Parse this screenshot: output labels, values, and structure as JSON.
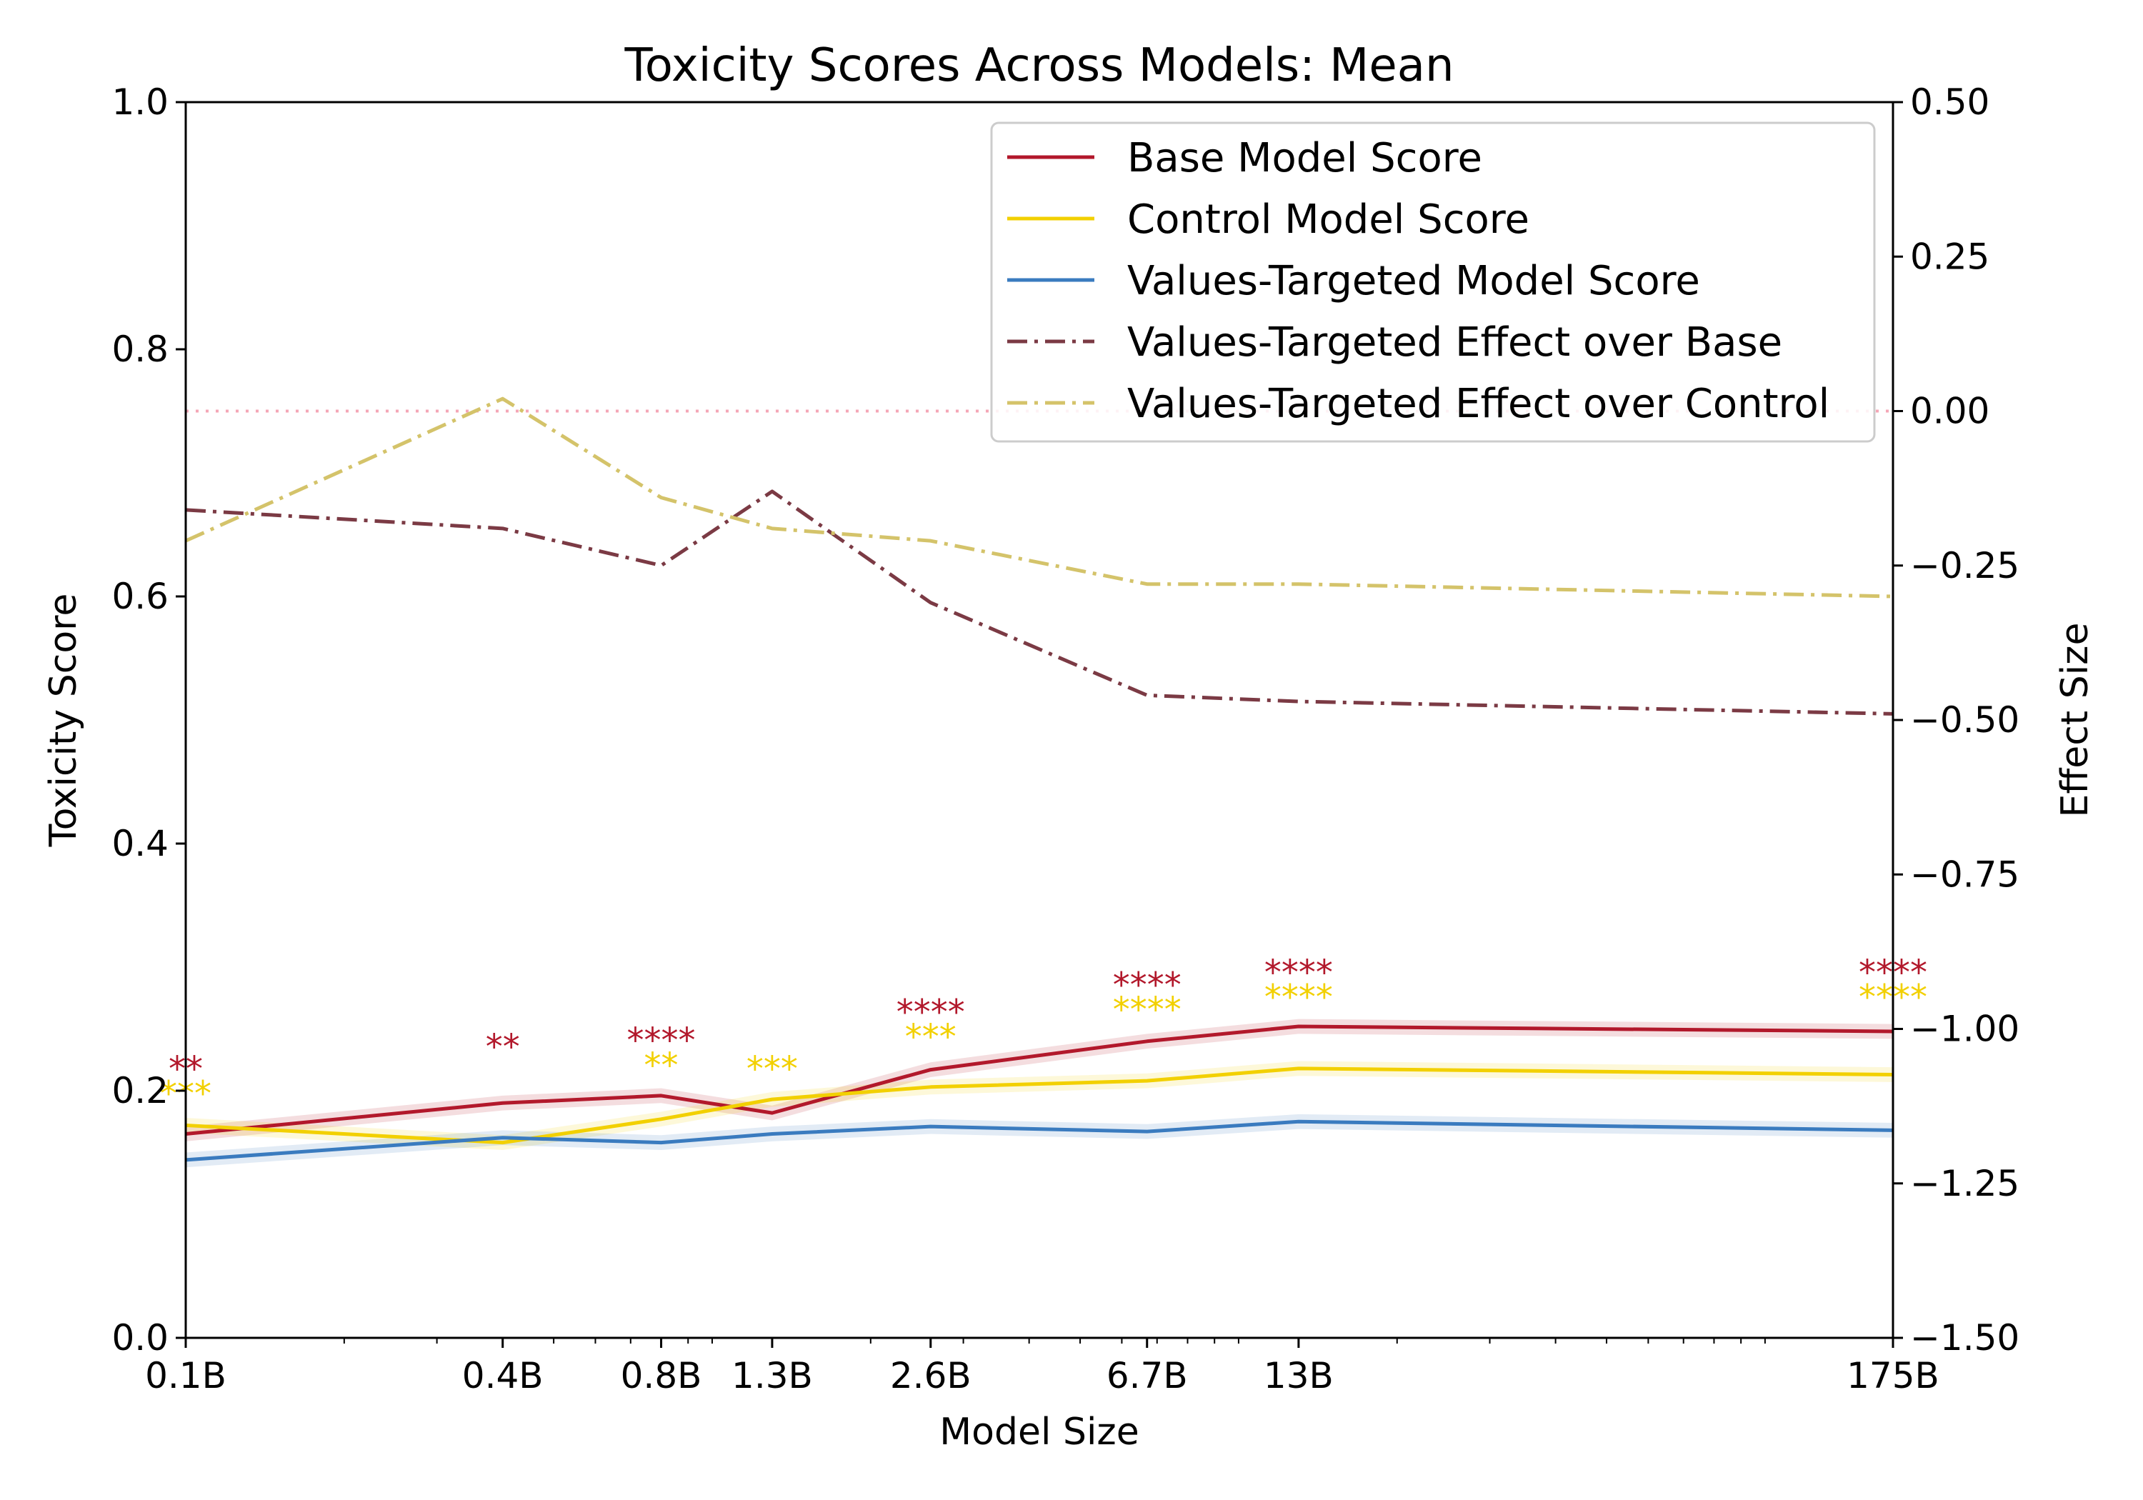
{
  "chart_data": {
    "type": "line",
    "title": "Toxicity Scores Across Models: Mean",
    "xlabel": "Model Size",
    "ylabel": "Toxicity Score",
    "ylabel_right": "Effect Size",
    "x_scale": "log",
    "x": [
      0.1,
      0.4,
      0.8,
      1.3,
      2.6,
      6.7,
      13,
      175
    ],
    "x_tick_labels": [
      "0.1B",
      "0.4B",
      "0.8B",
      "1.3B",
      "2.6B",
      "6.7B",
      "13B",
      "175B"
    ],
    "ylim": [
      0.0,
      1.0
    ],
    "y_ticks": [
      "0.0",
      "0.2",
      "0.4",
      "0.6",
      "0.8",
      "1.0"
    ],
    "ylim_right": [
      -1.5,
      0.5
    ],
    "y_ticks_right": [
      "−1.50",
      "−1.25",
      "−1.00",
      "−0.75",
      "−0.50",
      "−0.25",
      "0.00",
      "0.25",
      "0.50"
    ],
    "zero_line": 0.0,
    "legend_position": "upper-right",
    "series": [
      {
        "name": "Base Model Score",
        "axis": "left",
        "style": "solid",
        "color": "#b2182b",
        "values": [
          0.165,
          0.19,
          0.196,
          0.182,
          0.217,
          0.24,
          0.252,
          0.248
        ]
      },
      {
        "name": "Control Model Score",
        "axis": "left",
        "style": "solid",
        "color": "#f2d000",
        "values": [
          0.172,
          0.158,
          0.177,
          0.193,
          0.203,
          0.208,
          0.218,
          0.213
        ]
      },
      {
        "name": "Values-Targeted Model Score",
        "axis": "left",
        "style": "solid",
        "color": "#3a7bbf",
        "values": [
          0.144,
          0.162,
          0.158,
          0.165,
          0.171,
          0.167,
          0.175,
          0.168
        ]
      },
      {
        "name": "Values-Targeted Effect over Base",
        "axis": "right",
        "style": "dashdot",
        "color": "#7b3a44",
        "values": [
          -0.16,
          -0.19,
          -0.25,
          -0.13,
          -0.31,
          -0.46,
          -0.47,
          -0.49
        ]
      },
      {
        "name": "Values-Targeted Effect over Control",
        "axis": "right",
        "style": "dashdot",
        "color": "#d4c36a",
        "values": [
          -0.21,
          0.02,
          -0.14,
          -0.19,
          -0.21,
          -0.28,
          -0.28,
          -0.3
        ]
      }
    ],
    "significance_base": [
      "**",
      "**",
      "****",
      "",
      "****",
      "****",
      "****",
      "****"
    ],
    "significance_control": [
      "***",
      "",
      "**",
      "***",
      "***",
      "****",
      "****",
      "****"
    ],
    "significance_base_y": [
      0.222,
      0.24,
      0.245,
      null,
      0.268,
      0.29,
      0.3,
      0.3
    ],
    "significance_control_y": [
      0.202,
      null,
      0.225,
      0.222,
      0.248,
      0.27,
      0.28,
      0.28
    ]
  },
  "colors": {
    "base": "#b2182b",
    "control": "#f2d000",
    "values": "#3a7bbf",
    "effect_base": "#7b3a44",
    "effect_control": "#d4c36a",
    "zero_line": "#f4a6b6"
  }
}
